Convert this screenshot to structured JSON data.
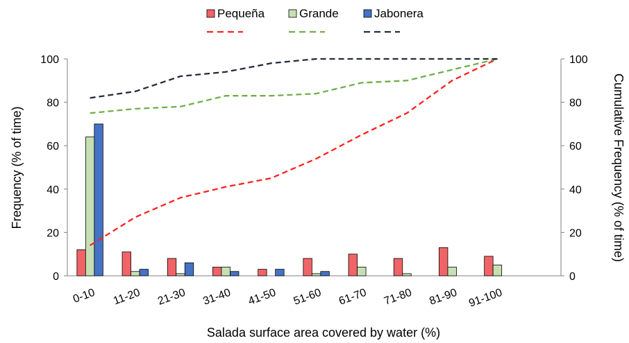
{
  "chart_data": {
    "type": "bar",
    "categories": [
      "0-10",
      "11-20",
      "21-30",
      "31-40",
      "41-50",
      "51-60",
      "61-70",
      "71-80",
      "81-90",
      "91-100"
    ],
    "series": [
      {
        "name": "Pequeña",
        "color": "#f06467",
        "values": [
          12,
          11,
          8,
          4,
          3,
          8,
          10,
          8,
          13,
          9
        ]
      },
      {
        "name": "Grande",
        "color": "#c6e0b4",
        "values": [
          64,
          2,
          1,
          4,
          0,
          1,
          4,
          1,
          4,
          5
        ]
      },
      {
        "name": "Jabonera",
        "color": "#4472c4",
        "values": [
          70,
          3,
          6,
          2,
          3,
          2,
          0,
          0,
          0,
          0
        ]
      }
    ],
    "cumulative_series": [
      {
        "color": "#ff2020",
        "values": [
          14,
          27,
          36,
          41,
          45,
          54,
          65,
          75,
          90,
          100
        ]
      },
      {
        "color": "#70ad47",
        "values": [
          75,
          77,
          78,
          83,
          83,
          84,
          89,
          90,
          95,
          100
        ]
      },
      {
        "color": "#222a3a",
        "values": [
          82,
          85,
          92,
          94,
          98,
          100,
          100,
          100,
          100,
          100
        ]
      }
    ],
    "xlabel": "Salada surface area covered by water (%)",
    "ylabel": "Frequency (% of time)",
    "y2label": "Cumulative Frequency (% of time)",
    "ylim": [
      0,
      100
    ],
    "y2lim": [
      0,
      100
    ],
    "yticks": [
      0,
      20,
      40,
      60,
      80,
      100
    ],
    "grid": false,
    "legend_position": "top"
  }
}
